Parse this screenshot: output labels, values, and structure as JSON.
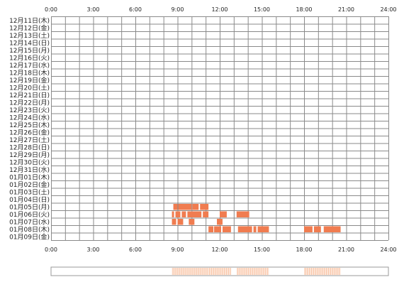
{
  "chart_data": {
    "type": "heatmap",
    "title": "",
    "xlabel": "",
    "ylabel": "",
    "x_unit": "hour of day",
    "xlim": [
      0,
      24
    ],
    "x_ticks": [
      {
        "value": 0,
        "label": "0:00"
      },
      {
        "value": 3,
        "label": "3:00"
      },
      {
        "value": 6,
        "label": "6:00"
      },
      {
        "value": 9,
        "label": "9:00"
      },
      {
        "value": 12,
        "label": "12:00"
      },
      {
        "value": 15,
        "label": "15:00"
      },
      {
        "value": 18,
        "label": "18:00"
      },
      {
        "value": 21,
        "label": "21:00"
      },
      {
        "value": 24,
        "label": "24:00"
      }
    ],
    "grid": true,
    "grid_minor_step_hours": 1,
    "rows": [
      {
        "label": "12月11日(木)",
        "segments": []
      },
      {
        "label": "12月12日(金)",
        "segments": []
      },
      {
        "label": "12月13日(土)",
        "segments": []
      },
      {
        "label": "12月14日(日)",
        "segments": []
      },
      {
        "label": "12月15日(月)",
        "segments": []
      },
      {
        "label": "12月16日(火)",
        "segments": []
      },
      {
        "label": "12月17日(水)",
        "segments": []
      },
      {
        "label": "12月18日(木)",
        "segments": []
      },
      {
        "label": "12月19日(金)",
        "segments": []
      },
      {
        "label": "12月20日(土)",
        "segments": []
      },
      {
        "label": "12月21日(日)",
        "segments": []
      },
      {
        "label": "12月22日(月)",
        "segments": []
      },
      {
        "label": "12月23日(火)",
        "segments": []
      },
      {
        "label": "12月24日(水)",
        "segments": []
      },
      {
        "label": "12月25日(木)",
        "segments": []
      },
      {
        "label": "12月26日(金)",
        "segments": []
      },
      {
        "label": "12月27日(土)",
        "segments": []
      },
      {
        "label": "12月28日(日)",
        "segments": []
      },
      {
        "label": "12月29日(月)",
        "segments": []
      },
      {
        "label": "12月30日(火)",
        "segments": []
      },
      {
        "label": "12月31日(水)",
        "segments": []
      },
      {
        "label": "01月01日(木)",
        "segments": []
      },
      {
        "label": "01月02日(金)",
        "segments": []
      },
      {
        "label": "01月03日(土)",
        "segments": []
      },
      {
        "label": "01月04日(日)",
        "segments": []
      },
      {
        "label": "01月05日(月)",
        "segments": [
          [
            8.7,
            9.0
          ],
          [
            9.05,
            10.0
          ],
          [
            10.05,
            10.5
          ],
          [
            10.6,
            11.2
          ]
        ]
      },
      {
        "label": "01月06日(火)",
        "segments": [
          [
            8.6,
            8.75
          ],
          [
            8.85,
            9.2
          ],
          [
            9.3,
            9.6
          ],
          [
            9.7,
            10.7
          ],
          [
            10.8,
            11.2
          ],
          [
            12.0,
            12.5
          ],
          [
            13.2,
            14.1
          ]
        ]
      },
      {
        "label": "01月07日(水)",
        "segments": [
          [
            8.6,
            8.9
          ],
          [
            9.0,
            9.4
          ],
          [
            9.8,
            10.2
          ],
          [
            11.8,
            12.2
          ]
        ]
      },
      {
        "label": "01月08日(木)",
        "segments": [
          [
            11.2,
            11.55
          ],
          [
            11.6,
            12.1
          ],
          [
            12.2,
            12.8
          ],
          [
            13.3,
            14.3
          ],
          [
            14.4,
            14.6
          ],
          [
            14.7,
            15.5
          ],
          [
            18.0,
            18.6
          ],
          [
            18.7,
            19.2
          ],
          [
            19.4,
            20.6
          ]
        ]
      },
      {
        "label": "01月09日(金)",
        "segments": []
      }
    ],
    "summary_band": [
      [
        8.6,
        11.2
      ],
      [
        11.2,
        12.8
      ],
      [
        13.2,
        15.5
      ],
      [
        18.0,
        20.6
      ]
    ],
    "colors": {
      "bar": "#f07c50",
      "bar_edge": "#ffffff",
      "grid": "#8a8a8a",
      "summary_light": "#fde3d4",
      "summary_frame": "#999999"
    }
  }
}
